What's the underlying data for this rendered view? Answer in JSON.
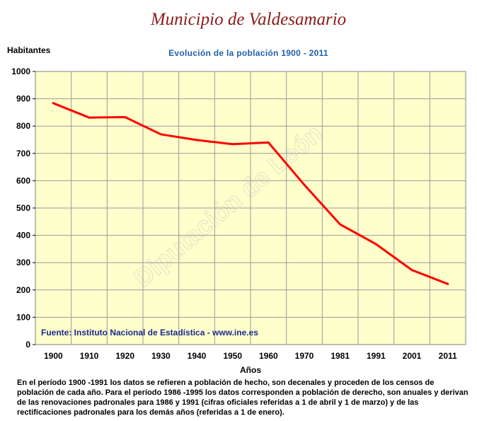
{
  "header": {
    "title": "Municipio de Valdesamario",
    "y_unit": "Habitantes"
  },
  "chart_data": {
    "type": "line",
    "title": "Evolución de la población 1900 - 2011",
    "xlabel": "Años",
    "ylabel": "Habitantes",
    "ylim": [
      0,
      1000
    ],
    "yticks": [
      0,
      100,
      200,
      300,
      400,
      500,
      600,
      700,
      800,
      900,
      1000
    ],
    "grid": true,
    "categories": [
      "1900",
      "1910",
      "1920",
      "1930",
      "1940",
      "1950",
      "1960",
      "1970",
      "1981",
      "1991",
      "2001",
      "2011"
    ],
    "series": [
      {
        "values": [
          884,
          831,
          833,
          770,
          749,
          734,
          740,
          585,
          440,
          368,
          273,
          222
        ],
        "color": "#ff0000"
      }
    ],
    "source": "Fuente: Instituto Nacional de Estadística - www.ine.es",
    "watermark": "Diputación de León",
    "colors": {
      "background": "#ffffcc",
      "grid": "#9a9a9a",
      "source_text": "#1a2a8c",
      "line": "#ff0000"
    }
  },
  "footnote": "En el período 1900 -1991 los datos se refieren a población de hecho, son decenales y proceden de los censos de población de cada año. Para el período 1986 -1995 los datos corresponden a población de derecho, son anuales y derivan de las renovaciones padronales para 1986 y 1991 (cifras oficiales referidas a 1 de abril y 1 de marzo) y de las rectificaciones padronales para los demás años (referidas a 1 de enero)."
}
